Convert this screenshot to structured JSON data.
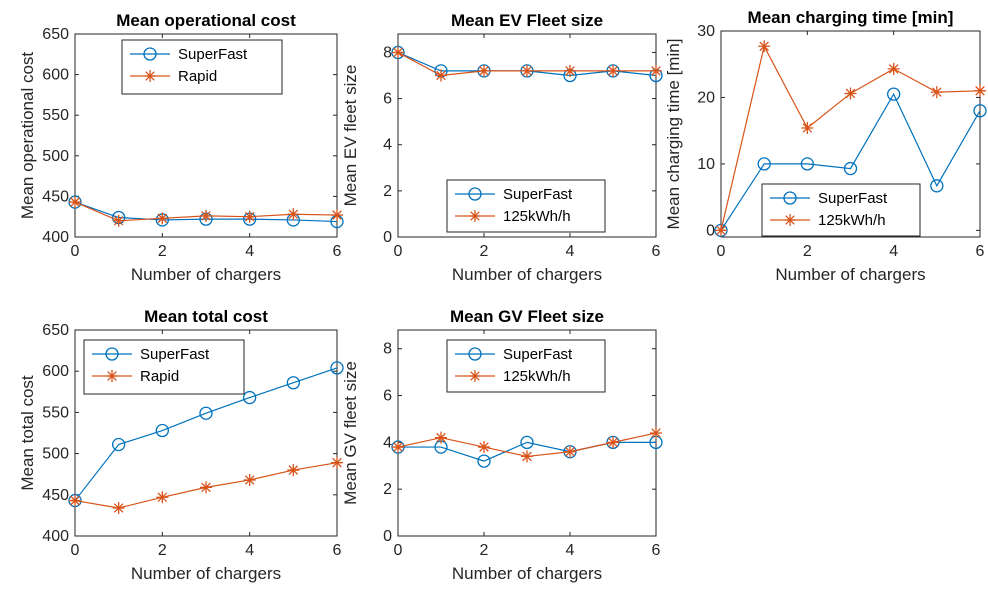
{
  "chart_data": [
    {
      "type": "line",
      "title": "Mean operational cost",
      "xlabel": "Number of chargers",
      "ylabel": "Mean operational cost",
      "xlim": [
        0,
        6
      ],
      "ylim": [
        400,
        650
      ],
      "xticks": [
        0,
        2,
        4,
        6
      ],
      "yticks": [
        400,
        450,
        500,
        550,
        600,
        650
      ],
      "legend_position": "top-center",
      "x": [
        0,
        1,
        2,
        3,
        4,
        5,
        6
      ],
      "series": [
        {
          "name": "SuperFast",
          "marker": "circle",
          "color": "#0072BD",
          "values": [
            443,
            424,
            421,
            422,
            422,
            421,
            419
          ]
        },
        {
          "name": "Rapid",
          "marker": "star",
          "color": "#D95319",
          "values": [
            443,
            420,
            423,
            426,
            425,
            428,
            427
          ]
        }
      ]
    },
    {
      "type": "line",
      "title": "Mean EV Fleet size",
      "xlabel": "Number of chargers",
      "ylabel": "Mean EV fleet size",
      "xlim": [
        0,
        6
      ],
      "ylim": [
        0,
        8.8
      ],
      "xticks": [
        0,
        2,
        4,
        6
      ],
      "yticks": [
        0,
        2,
        4,
        6,
        8
      ],
      "legend_position": "bottom-center",
      "x": [
        0,
        1,
        2,
        3,
        4,
        5,
        6
      ],
      "series": [
        {
          "name": "SuperFast",
          "marker": "circle",
          "color": "#0072BD",
          "values": [
            8,
            7.2,
            7.2,
            7.2,
            7.0,
            7.2,
            7.0
          ]
        },
        {
          "name": "125kWh/h",
          "marker": "star",
          "color": "#D95319",
          "values": [
            8,
            7.0,
            7.2,
            7.2,
            7.2,
            7.2,
            7.2
          ]
        }
      ]
    },
    {
      "type": "line",
      "title": "Mean charging time [min]",
      "xlabel": "Number of chargers",
      "ylabel": "Mean charging time [min]",
      "xlim": [
        0,
        6
      ],
      "ylim": [
        -1,
        30
      ],
      "xticks": [
        0,
        2,
        4,
        6
      ],
      "yticks": [
        0,
        10,
        20,
        30
      ],
      "legend_position": "bottom-center",
      "x": [
        0,
        1,
        2,
        3,
        4,
        5,
        6
      ],
      "series": [
        {
          "name": "SuperFast",
          "marker": "circle",
          "color": "#0072BD",
          "values": [
            0,
            10,
            10,
            9.3,
            20.5,
            6.7,
            18
          ]
        },
        {
          "name": "125kWh/h",
          "marker": "star",
          "color": "#D95319",
          "values": [
            0,
            27.7,
            15.4,
            20.6,
            24.3,
            20.8,
            21
          ]
        }
      ]
    },
    {
      "type": "line",
      "title": "Mean total cost",
      "xlabel": "Number of chargers",
      "ylabel": "Mean total cost",
      "xlim": [
        0,
        6
      ],
      "ylim": [
        400,
        650
      ],
      "xticks": [
        0,
        2,
        4,
        6
      ],
      "yticks": [
        400,
        450,
        500,
        550,
        600,
        650
      ],
      "legend_position": "top-center",
      "x": [
        0,
        1,
        2,
        3,
        4,
        5,
        6
      ],
      "series": [
        {
          "name": "SuperFast",
          "marker": "circle",
          "color": "#0072BD",
          "values": [
            443,
            511,
            528,
            549,
            568,
            586,
            604
          ]
        },
        {
          "name": "Rapid",
          "marker": "star",
          "color": "#D95319",
          "values": [
            443,
            434,
            447,
            459,
            468,
            480,
            489
          ]
        }
      ]
    },
    {
      "type": "line",
      "title": "Mean GV Fleet size",
      "xlabel": "Number of chargers",
      "ylabel": "Mean GV fleet size",
      "xlim": [
        0,
        6
      ],
      "ylim": [
        0,
        8.8
      ],
      "xticks": [
        0,
        2,
        4,
        6
      ],
      "yticks": [
        0,
        2,
        4,
        6,
        8
      ],
      "legend_position": "top-center",
      "x": [
        0,
        1,
        2,
        3,
        4,
        5,
        6
      ],
      "series": [
        {
          "name": "SuperFast",
          "marker": "circle",
          "color": "#0072BD",
          "values": [
            3.8,
            3.8,
            3.2,
            4.0,
            3.6,
            4.0,
            4.0
          ]
        },
        {
          "name": "125kWh/h",
          "marker": "star",
          "color": "#D95319",
          "values": [
            3.8,
            4.2,
            3.8,
            3.4,
            3.6,
            4.0,
            4.4
          ]
        }
      ]
    }
  ]
}
